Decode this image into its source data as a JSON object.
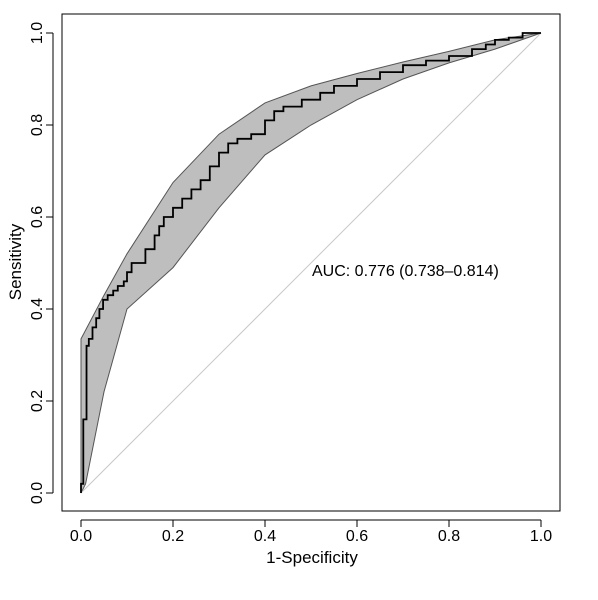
{
  "chart_data": {
    "type": "line",
    "title": "",
    "xlabel": "1-Specificity",
    "ylabel": "Sensitivity",
    "xlim": [
      0,
      1
    ],
    "ylim": [
      0,
      1
    ],
    "xticks": [
      "0.0",
      "0.2",
      "0.4",
      "0.6",
      "0.8",
      "1.0"
    ],
    "yticks": [
      "0.0",
      "0.2",
      "0.4",
      "0.6",
      "0.8",
      "1.0"
    ],
    "annotation": "AUC: 0.776 (0.738–0.814)",
    "grid": false,
    "colors": {
      "curve": "#000000",
      "band_fill": "#bebebe",
      "band_edge": "#555555",
      "diagonal": "#c8c8c8"
    },
    "series": [
      {
        "type": "step",
        "x": [
          0.0,
          0.0,
          0.005,
          0.005,
          0.012,
          0.012,
          0.017,
          0.017,
          0.025,
          0.025,
          0.033,
          0.033,
          0.04,
          0.04,
          0.048,
          0.048,
          0.058,
          0.058,
          0.07,
          0.07,
          0.08,
          0.08,
          0.093,
          0.093,
          0.1,
          0.1,
          0.11,
          0.11,
          0.14,
          0.14,
          0.16,
          0.16,
          0.17,
          0.17,
          0.18,
          0.18,
          0.2,
          0.2,
          0.22,
          0.22,
          0.24,
          0.24,
          0.26,
          0.26,
          0.28,
          0.28,
          0.3,
          0.3,
          0.32,
          0.32,
          0.34,
          0.34,
          0.37,
          0.37,
          0.4,
          0.4,
          0.42,
          0.42,
          0.44,
          0.44,
          0.48,
          0.48,
          0.52,
          0.52,
          0.55,
          0.55,
          0.6,
          0.6,
          0.65,
          0.65,
          0.7,
          0.7,
          0.75,
          0.75,
          0.8,
          0.8,
          0.85,
          0.85,
          0.88,
          0.88,
          0.9,
          0.9,
          0.93,
          0.93,
          0.96,
          0.96,
          1.0
        ],
        "y": [
          0.0,
          0.02,
          0.02,
          0.16,
          0.16,
          0.32,
          0.32,
          0.335,
          0.335,
          0.36,
          0.36,
          0.38,
          0.38,
          0.4,
          0.4,
          0.42,
          0.42,
          0.43,
          0.43,
          0.44,
          0.44,
          0.45,
          0.45,
          0.46,
          0.46,
          0.48,
          0.48,
          0.5,
          0.5,
          0.53,
          0.53,
          0.56,
          0.56,
          0.58,
          0.58,
          0.6,
          0.6,
          0.62,
          0.62,
          0.64,
          0.64,
          0.66,
          0.66,
          0.68,
          0.68,
          0.71,
          0.71,
          0.74,
          0.74,
          0.76,
          0.76,
          0.77,
          0.77,
          0.78,
          0.78,
          0.81,
          0.81,
          0.83,
          0.83,
          0.84,
          0.84,
          0.855,
          0.855,
          0.87,
          0.87,
          0.885,
          0.885,
          0.9,
          0.9,
          0.915,
          0.915,
          0.93,
          0.93,
          0.94,
          0.94,
          0.95,
          0.95,
          0.965,
          0.965,
          0.975,
          0.975,
          0.985,
          0.985,
          0.99,
          0.99,
          1.0,
          1.0
        ]
      },
      {
        "type": "band-upper",
        "x": [
          0.0,
          0.05,
          0.1,
          0.2,
          0.3,
          0.4,
          0.5,
          0.6,
          0.7,
          0.8,
          0.9,
          1.0
        ],
        "y": [
          0.335,
          0.43,
          0.52,
          0.675,
          0.78,
          0.848,
          0.885,
          0.912,
          0.937,
          0.96,
          0.985,
          1.0
        ]
      },
      {
        "type": "band-lower",
        "x": [
          0.0,
          0.01,
          0.05,
          0.1,
          0.2,
          0.3,
          0.4,
          0.5,
          0.6,
          0.7,
          0.8,
          0.9,
          1.0
        ],
        "y": [
          0.0,
          0.02,
          0.22,
          0.4,
          0.49,
          0.62,
          0.735,
          0.8,
          0.855,
          0.9,
          0.935,
          0.965,
          1.0
        ]
      },
      {
        "type": "reference",
        "x": [
          0,
          1
        ],
        "y": [
          0,
          1
        ]
      }
    ]
  }
}
